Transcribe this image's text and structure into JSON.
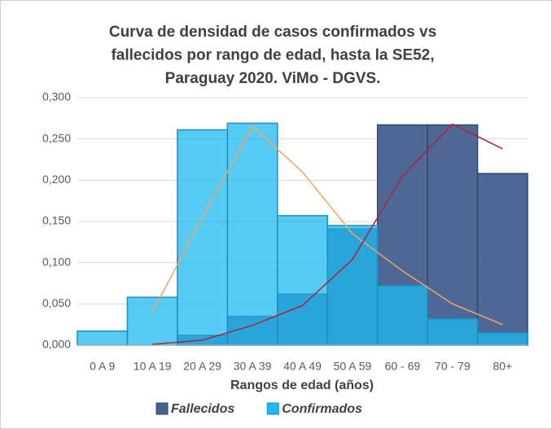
{
  "chart_data": {
    "type": "bar",
    "title": "Curva de densidad de casos confirmados vs fallecidos por rango de edad, hasta la SE52, Paraguay 2020. ViMo - DGVS.",
    "title_lines": [
      "Curva de densidad de casos confirmados vs",
      "fallecidos por rango de edad, hasta la SE52,",
      "Paraguay 2020. ViMo - DGVS."
    ],
    "x_label": "Rangos de edad (años)",
    "categories": [
      "0 A 9",
      "10 A 19",
      "20 A 29",
      "30 A 39",
      "40 A 49",
      "50 A 59",
      "60 - 69",
      "70 - 79",
      "80+"
    ],
    "series": [
      {
        "name": "Fallecidos",
        "color": "#44608f",
        "kind": "bar",
        "values": [
          0,
          0,
          0.012,
          0.035,
          0.062,
          0.141,
          0.267,
          0.267,
          0.208
        ]
      },
      {
        "name": "Confirmados",
        "color": "#1fb9f0",
        "kind": "bar",
        "values": [
          0.017,
          0.058,
          0.261,
          0.269,
          0.157,
          0.145,
          0.072,
          0.032,
          0.015
        ]
      },
      {
        "color": "#f4a460",
        "kind": "line",
        "values": [
          null,
          0.04,
          0.155,
          0.265,
          0.21,
          0.135,
          0.09,
          0.05,
          0.025
        ]
      },
      {
        "color": "#b0203a",
        "kind": "line",
        "values": [
          null,
          0.001,
          0.006,
          0.024,
          0.048,
          0.104,
          0.205,
          0.268,
          0.238
        ]
      }
    ],
    "ylim": [
      0,
      0.3
    ],
    "yticks": [
      {
        "value": 0,
        "label": "0,000"
      },
      {
        "value": 0.05,
        "label": "0,050"
      },
      {
        "value": 0.1,
        "label": "0,100"
      },
      {
        "value": 0.15,
        "label": "0,150"
      },
      {
        "value": 0.2,
        "label": "0,200"
      },
      {
        "value": 0.25,
        "label": "0,250"
      },
      {
        "value": 0.3,
        "label": "0,300"
      }
    ],
    "grid": true,
    "legend": "bottom"
  }
}
